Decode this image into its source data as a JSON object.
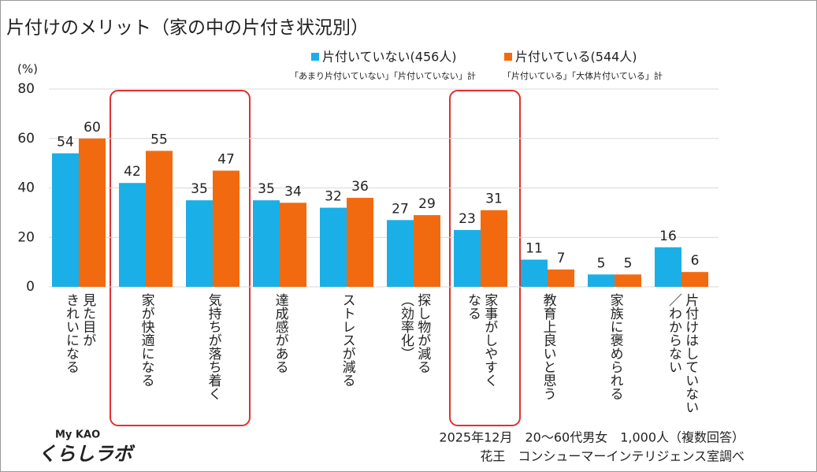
{
  "chart_data": {
    "type": "bar",
    "title": "片付けのメリット（家の中の片付き状況別）",
    "y_unit": "(%)",
    "categories": [
      "見た目が\nきれいになる",
      "家が快適になる",
      "気持ちが落ち着く",
      "達成感がある",
      "ストレスが減る",
      "探し物が減る\n（効率化）",
      "家事がしやすく\nなる",
      "教育上良いと思う",
      "家族に褒められる",
      "片付けはしていない\n／わからない"
    ],
    "series": [
      {
        "name": "片付いていない(456人)",
        "note": "「あまり片付いていない」「片付いていない」計",
        "color": "#1aafe6",
        "values": [
          54,
          42,
          35,
          35,
          32,
          27,
          23,
          11,
          5,
          16
        ]
      },
      {
        "name": "片付いている(544人)",
        "note": "「片付いている」「大体片付いている」計",
        "color": "#f26a10",
        "values": [
          60,
          55,
          47,
          34,
          36,
          29,
          31,
          7,
          5,
          6
        ]
      }
    ],
    "ylim": [
      0,
      80
    ],
    "yticks": [
      0,
      20,
      40,
      60,
      80
    ],
    "grid": true,
    "footnotes": [
      "2025年12月　20～60代男女　1,000人（複数回答）",
      "花王　コンシューマーインテリジェンス室調べ"
    ],
    "logo": [
      "My KAO",
      "くらしラボ"
    ]
  }
}
